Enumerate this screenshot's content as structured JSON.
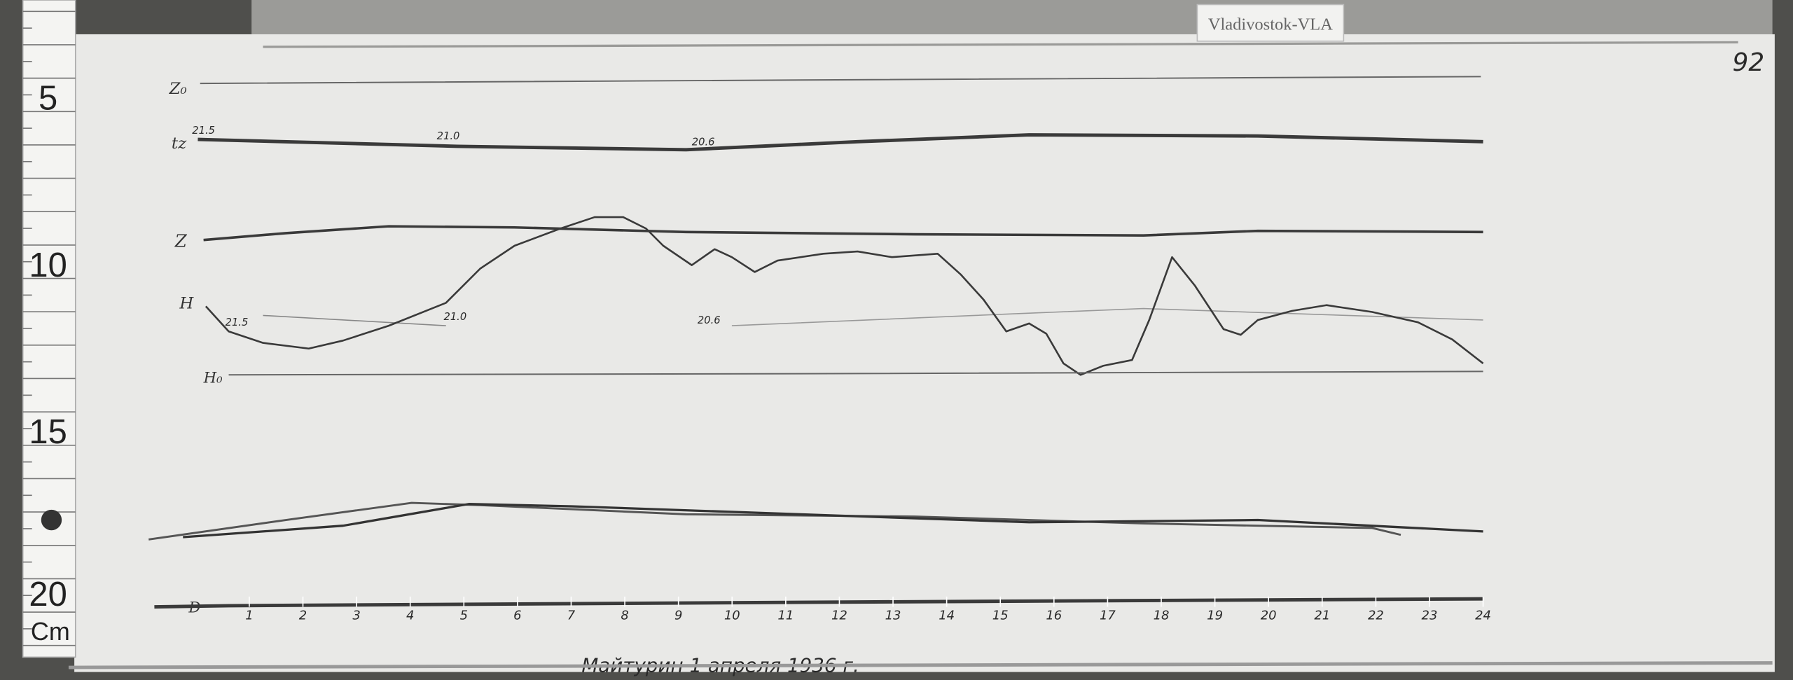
{
  "station_tag": "Vladivostok-VLA",
  "sheet_number": "92",
  "ruler": {
    "marks": [
      "5",
      "10",
      "15",
      "20"
    ],
    "unit": "Cm"
  },
  "chart_data": {
    "type": "line",
    "x_axis": {
      "unit": "hour",
      "range": [
        0,
        24
      ],
      "tick_labels": [
        "1",
        "2",
        "3",
        "4",
        "5",
        "6",
        "7",
        "8",
        "9",
        "10",
        "11",
        "12",
        "13",
        "14",
        "15",
        "16",
        "17",
        "18",
        "19",
        "20",
        "21",
        "22",
        "23",
        "24"
      ]
    },
    "trace_labels": {
      "z_baseline": "Z₀",
      "temperature": "tz",
      "z": "Z",
      "h": "H",
      "h_baseline": "H₀",
      "d_baseline": "D"
    },
    "temperature_readings": {
      "tz_line": [
        "21.5",
        "21.0",
        "20.6"
      ],
      "h_area": [
        "21.5",
        "21.0",
        "20.6"
      ]
    },
    "footer_signature": "Майтурин 1 апреля 1936 г."
  },
  "colors": {
    "paper": "#e9e9e7",
    "trace": "#3a3a3a",
    "background": "#4a4a48"
  }
}
